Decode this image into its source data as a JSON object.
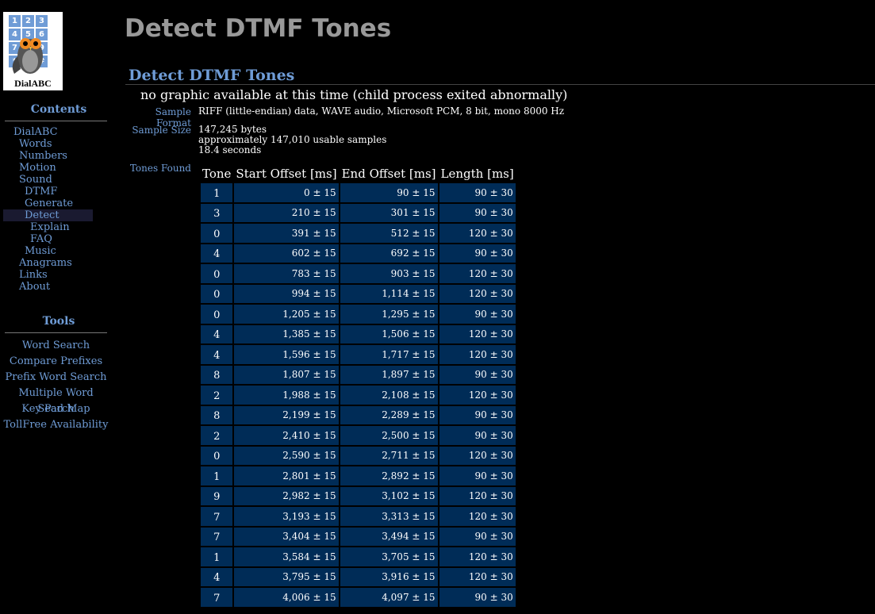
{
  "logo": {
    "keys": [
      "1",
      "2",
      "3",
      "4",
      "5",
      "6",
      "7",
      "8",
      "9",
      "*",
      "0",
      "#"
    ],
    "wordmark": "DialABC"
  },
  "page_title": "Detect DTMF Tones",
  "section_title": "Detect DTMF Tones",
  "no_graphic_text": "no graphic available at this time (child process exited abnormally)",
  "sample_format": {
    "label": "Sample Format",
    "value": "RIFF (little-endian) data, WAVE audio, Microsoft PCM, 8 bit, mono 8000 Hz"
  },
  "sample_size": {
    "label": "Sample Size",
    "lines": [
      "147,245 bytes",
      "approximately 147,010 usable samples",
      "18.4 seconds"
    ]
  },
  "tones_found_label": "Tones Found",
  "sidebar": {
    "contents_heading": "Contents",
    "items": [
      {
        "label": "DialABC",
        "level": 0
      },
      {
        "label": "Words",
        "level": 1
      },
      {
        "label": "Numbers",
        "level": 1
      },
      {
        "label": "Motion",
        "level": 1
      },
      {
        "label": "Sound",
        "level": 1
      },
      {
        "label": "DTMF",
        "level": 2
      },
      {
        "label": "Generate",
        "level": 2
      },
      {
        "label": "Detect",
        "level": 2,
        "active": true
      },
      {
        "label": "Explain",
        "level": 3
      },
      {
        "label": "FAQ",
        "level": 3
      },
      {
        "label": "Music",
        "level": 2
      },
      {
        "label": "Anagrams",
        "level": 1
      },
      {
        "label": "Links",
        "level": 1
      },
      {
        "label": "About",
        "level": 1
      }
    ],
    "tools_heading": "Tools",
    "tools": [
      "Word Search",
      "Compare Prefixes",
      "Prefix Word Search",
      "Multiple Word Search",
      "Key Pad Map",
      "TollFree Availability"
    ]
  },
  "table": {
    "headers": [
      "Tone",
      "Start Offset [ms]",
      "End Offset [ms]",
      "Length [ms]"
    ],
    "rows": [
      [
        "1",
        "0 ± 15",
        "90 ± 15",
        "90 ± 30"
      ],
      [
        "3",
        "210 ± 15",
        "301 ± 15",
        "90 ± 30"
      ],
      [
        "0",
        "391 ± 15",
        "512 ± 15",
        "120 ± 30"
      ],
      [
        "4",
        "602 ± 15",
        "692 ± 15",
        "90 ± 30"
      ],
      [
        "0",
        "783 ± 15",
        "903 ± 15",
        "120 ± 30"
      ],
      [
        "0",
        "994 ± 15",
        "1,114 ± 15",
        "120 ± 30"
      ],
      [
        "0",
        "1,205 ± 15",
        "1,295 ± 15",
        "90 ± 30"
      ],
      [
        "4",
        "1,385 ± 15",
        "1,506 ± 15",
        "120 ± 30"
      ],
      [
        "4",
        "1,596 ± 15",
        "1,717 ± 15",
        "120 ± 30"
      ],
      [
        "8",
        "1,807 ± 15",
        "1,897 ± 15",
        "90 ± 30"
      ],
      [
        "2",
        "1,988 ± 15",
        "2,108 ± 15",
        "120 ± 30"
      ],
      [
        "8",
        "2,199 ± 15",
        "2,289 ± 15",
        "90 ± 30"
      ],
      [
        "2",
        "2,410 ± 15",
        "2,500 ± 15",
        "90 ± 30"
      ],
      [
        "0",
        "2,590 ± 15",
        "2,711 ± 15",
        "120 ± 30"
      ],
      [
        "1",
        "2,801 ± 15",
        "2,892 ± 15",
        "90 ± 30"
      ],
      [
        "9",
        "2,982 ± 15",
        "3,102 ± 15",
        "120 ± 30"
      ],
      [
        "7",
        "3,193 ± 15",
        "3,313 ± 15",
        "120 ± 30"
      ],
      [
        "7",
        "3,404 ± 15",
        "3,494 ± 15",
        "90 ± 30"
      ],
      [
        "1",
        "3,584 ± 15",
        "3,705 ± 15",
        "120 ± 30"
      ],
      [
        "4",
        "3,795 ± 15",
        "3,916 ± 15",
        "120 ± 30"
      ],
      [
        "7",
        "4,006 ± 15",
        "4,097 ± 15",
        "90 ± 30"
      ]
    ]
  },
  "colors": {
    "background": "#000000",
    "accent": "#6f9cd6",
    "title_gray": "#999999",
    "cell_bg": "#002c57"
  }
}
